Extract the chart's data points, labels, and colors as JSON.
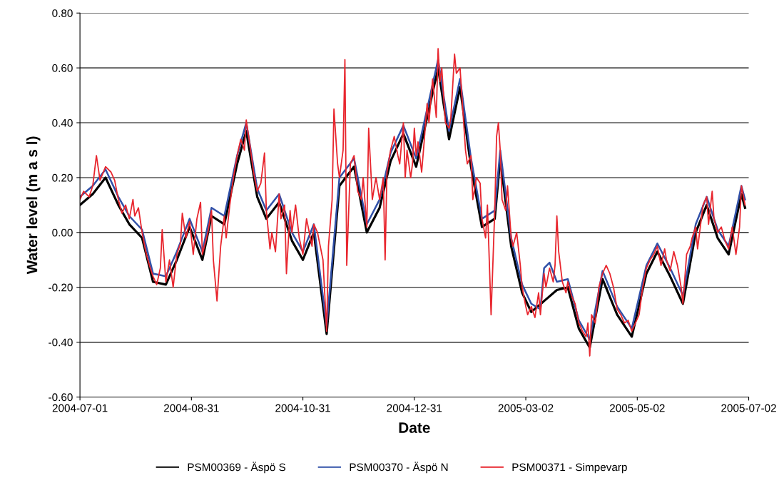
{
  "chart_data": {
    "type": "line",
    "xlabel": "Date",
    "ylabel": "Water level (m a s l)",
    "xlim": [
      "2004-07-01",
      "2005-07-02"
    ],
    "xticks": [
      "2004-07-01",
      "2004-08-31",
      "2004-10-31",
      "2004-12-31",
      "2005-03-02",
      "2005-05-02",
      "2005-07-02"
    ],
    "ylim": [
      -0.6,
      0.8
    ],
    "yticks": [
      {
        "value": -0.6,
        "label": "-0.60"
      },
      {
        "value": -0.4,
        "label": "-0.40"
      },
      {
        "value": -0.2,
        "label": "-0.20"
      },
      {
        "value": 0,
        "label": "0.00"
      },
      {
        "value": 0.2,
        "label": "0.20"
      },
      {
        "value": 0.4,
        "label": "0.40"
      },
      {
        "value": 0.6,
        "label": "0.60"
      },
      {
        "value": 0.8,
        "label": "0.80"
      }
    ],
    "grid": "y",
    "legend": "bottom",
    "marker": "none",
    "line_style": "solid",
    "series": [
      {
        "name": "PSM00369 - Äspö S",
        "color": "#000000",
        "x": [
          "2004-07-01",
          "2004-07-08",
          "2004-07-15",
          "2004-07-22",
          "2004-07-28",
          "2004-08-04",
          "2004-08-10",
          "2004-08-17",
          "2004-08-23",
          "2004-08-30",
          "2004-09-06",
          "2004-09-11",
          "2004-09-18",
          "2004-09-25",
          "2004-09-30",
          "2004-10-06",
          "2004-10-11",
          "2004-10-18",
          "2004-10-25",
          "2004-10-31",
          "2004-11-06",
          "2004-11-13",
          "2004-11-20",
          "2004-11-28",
          "2004-12-05",
          "2004-12-12",
          "2004-12-18",
          "2004-12-25",
          "2005-01-01",
          "2005-01-07",
          "2005-01-13",
          "2005-01-19",
          "2005-01-25",
          "2005-01-31",
          "2005-02-06",
          "2005-02-13",
          "2005-02-16",
          "2005-02-22",
          "2005-02-28",
          "2005-03-05",
          "2005-03-19",
          "2005-03-25",
          "2005-03-31",
          "2005-04-06",
          "2005-04-13",
          "2005-04-21",
          "2005-04-29",
          "2005-05-07",
          "2005-05-13",
          "2005-05-20",
          "2005-05-27",
          "2005-06-03",
          "2005-06-09",
          "2005-06-15",
          "2005-06-21",
          "2005-06-28",
          "2005-06-30"
        ],
        "values": [
          0.1,
          0.14,
          0.2,
          0.1,
          0.03,
          -0.02,
          -0.18,
          -0.19,
          -0.1,
          0.02,
          -0.1,
          0.06,
          0.03,
          0.25,
          0.37,
          0.13,
          0.05,
          0.11,
          -0.03,
          -0.1,
          0.0,
          -0.37,
          0.17,
          0.24,
          0.0,
          0.09,
          0.26,
          0.36,
          0.24,
          0.42,
          0.6,
          0.34,
          0.53,
          0.24,
          0.02,
          0.05,
          0.27,
          -0.05,
          -0.22,
          -0.29,
          -0.21,
          -0.2,
          -0.35,
          -0.42,
          -0.17,
          -0.3,
          -0.38,
          -0.15,
          -0.07,
          -0.16,
          -0.26,
          0.0,
          0.1,
          -0.02,
          -0.08,
          0.14,
          0.09
        ]
      },
      {
        "name": "PSM00370 - Äspö N",
        "color": "#3050a8",
        "x": [
          "2004-07-01",
          "2004-07-08",
          "2004-07-15",
          "2004-07-22",
          "2004-07-28",
          "2004-08-04",
          "2004-08-10",
          "2004-08-17",
          "2004-08-23",
          "2004-08-30",
          "2004-09-06",
          "2004-09-11",
          "2004-09-18",
          "2004-09-25",
          "2004-09-30",
          "2004-10-06",
          "2004-10-11",
          "2004-10-18",
          "2004-10-25",
          "2004-10-31",
          "2004-11-06",
          "2004-11-13",
          "2004-11-20",
          "2004-11-28",
          "2004-12-05",
          "2004-12-12",
          "2004-12-18",
          "2004-12-25",
          "2005-01-01",
          "2005-01-07",
          "2005-01-13",
          "2005-01-19",
          "2005-01-25",
          "2005-01-31",
          "2005-02-06",
          "2005-02-13",
          "2005-02-16",
          "2005-02-22",
          "2005-02-28",
          "2005-03-05",
          "2005-03-10",
          "2005-03-12",
          "2005-03-15",
          "2005-03-19",
          "2005-03-25",
          "2005-03-31",
          "2005-04-06",
          "2005-04-13",
          "2005-04-21",
          "2005-04-29",
          "2005-05-07",
          "2005-05-13",
          "2005-05-20",
          "2005-05-27",
          "2005-06-03",
          "2005-06-09",
          "2005-06-15",
          "2005-06-21",
          "2005-06-28",
          "2005-06-30"
        ],
        "values": [
          0.13,
          0.17,
          0.23,
          0.13,
          0.06,
          0.01,
          -0.15,
          -0.16,
          -0.07,
          0.05,
          -0.07,
          0.09,
          0.06,
          0.28,
          0.4,
          0.16,
          0.08,
          0.14,
          0.0,
          -0.07,
          0.03,
          -0.34,
          0.2,
          0.27,
          0.03,
          0.12,
          0.29,
          0.39,
          0.27,
          0.45,
          0.63,
          0.37,
          0.56,
          0.27,
          0.05,
          0.08,
          0.3,
          -0.02,
          -0.19,
          -0.26,
          -0.28,
          -0.13,
          -0.11,
          -0.18,
          -0.17,
          -0.32,
          -0.39,
          -0.14,
          -0.27,
          -0.35,
          -0.12,
          -0.04,
          -0.13,
          -0.23,
          0.03,
          0.13,
          0.01,
          -0.05,
          0.17,
          0.12
        ]
      },
      {
        "name": "PSM00371 - Simpevarp",
        "color": "#e8262e",
        "x": [
          "2004-07-01",
          "2004-07-03",
          "2004-07-06",
          "2004-07-08",
          "2004-07-10",
          "2004-07-12",
          "2004-07-15",
          "2004-07-18",
          "2004-07-20",
          "2004-07-22",
          "2004-07-24",
          "2004-07-26",
          "2004-07-28",
          "2004-07-30",
          "2004-07-31",
          "2004-08-02",
          "2004-08-04",
          "2004-08-06",
          "2004-08-08",
          "2004-08-10",
          "2004-08-12",
          "2004-08-14",
          "2004-08-15",
          "2004-08-17",
          "2004-08-19",
          "2004-08-21",
          "2004-08-23",
          "2004-08-25",
          "2004-08-26",
          "2004-08-28",
          "2004-08-30",
          "2004-09-01",
          "2004-09-03",
          "2004-09-05",
          "2004-09-06",
          "2004-09-09",
          "2004-09-11",
          "2004-09-12",
          "2004-09-14",
          "2004-09-16",
          "2004-09-18",
          "2004-09-19",
          "2004-09-21",
          "2004-09-23",
          "2004-09-25",
          "2004-09-27",
          "2004-09-29",
          "2004-09-30",
          "2004-10-02",
          "2004-10-04",
          "2004-10-06",
          "2004-10-08",
          "2004-10-10",
          "2004-10-11",
          "2004-10-13",
          "2004-10-14",
          "2004-10-16",
          "2004-10-18",
          "2004-10-19",
          "2004-10-21",
          "2004-10-22",
          "2004-10-24",
          "2004-10-25",
          "2004-10-27",
          "2004-10-29",
          "2004-10-31",
          "2004-11-02",
          "2004-11-05",
          "2004-11-06",
          "2004-11-08",
          "2004-11-11",
          "2004-11-13",
          "2004-11-14",
          "2004-11-16",
          "2004-11-17",
          "2004-11-19",
          "2004-11-20",
          "2004-11-22",
          "2004-11-23",
          "2004-11-24",
          "2004-11-26",
          "2004-11-28",
          "2004-11-30",
          "2004-12-02",
          "2004-12-03",
          "2004-12-05",
          "2004-12-06",
          "2004-12-08",
          "2004-12-10",
          "2004-12-12",
          "2004-12-14",
          "2004-12-15",
          "2004-12-16",
          "2004-12-18",
          "2004-12-20",
          "2004-12-22",
          "2004-12-23",
          "2004-12-25",
          "2004-12-26",
          "2004-12-27",
          "2004-12-29",
          "2004-12-30",
          "2004-12-31",
          "2005-01-01",
          "2005-01-02",
          "2005-01-04",
          "2005-01-05",
          "2005-01-07",
          "2005-01-08",
          "2005-01-09",
          "2005-01-10",
          "2005-01-12",
          "2005-01-13",
          "2005-01-14",
          "2005-01-15",
          "2005-01-17",
          "2005-01-19",
          "2005-01-20",
          "2005-01-22",
          "2005-01-23",
          "2005-01-25",
          "2005-01-26",
          "2005-01-28",
          "2005-01-29",
          "2005-01-31",
          "2005-02-01",
          "2005-02-03",
          "2005-02-05",
          "2005-02-06",
          "2005-02-08",
          "2005-02-09",
          "2005-02-11",
          "2005-02-13",
          "2005-02-14",
          "2005-02-15",
          "2005-02-16",
          "2005-02-17",
          "2005-02-19",
          "2005-02-20",
          "2005-02-22",
          "2005-02-23",
          "2005-02-25",
          "2005-02-27",
          "2005-02-28",
          "2005-03-02",
          "2005-03-03",
          "2005-03-05",
          "2005-03-07",
          "2005-03-09",
          "2005-03-10",
          "2005-03-12",
          "2005-03-13",
          "2005-03-15",
          "2005-03-17",
          "2005-03-18",
          "2005-03-19",
          "2005-03-20",
          "2005-03-22",
          "2005-03-24",
          "2005-03-25",
          "2005-03-27",
          "2005-03-29",
          "2005-03-31",
          "2005-04-02",
          "2005-04-04",
          "2005-04-05",
          "2005-04-06",
          "2005-04-07",
          "2005-04-09",
          "2005-04-11",
          "2005-04-13",
          "2005-04-15",
          "2005-04-17",
          "2005-04-19",
          "2005-04-21",
          "2005-04-23",
          "2005-04-25",
          "2005-04-27",
          "2005-04-29",
          "2005-05-01",
          "2005-05-03",
          "2005-05-05",
          "2005-05-07",
          "2005-05-09",
          "2005-05-11",
          "2005-05-13",
          "2005-05-15",
          "2005-05-17",
          "2005-05-18",
          "2005-05-20",
          "2005-05-22",
          "2005-05-24",
          "2005-05-26",
          "2005-05-27",
          "2005-05-29",
          "2005-05-31",
          "2005-06-01",
          "2005-06-03",
          "2005-06-04",
          "2005-06-07",
          "2005-06-09",
          "2005-06-10",
          "2005-06-12",
          "2005-06-13",
          "2005-06-15",
          "2005-06-17",
          "2005-06-19",
          "2005-06-21",
          "2005-06-23",
          "2005-06-25",
          "2005-06-27",
          "2005-06-28",
          "2005-06-30"
        ],
        "values": [
          0.12,
          0.15,
          0.13,
          0.17,
          0.28,
          0.19,
          0.24,
          0.22,
          0.19,
          0.12,
          0.07,
          0.1,
          0.05,
          0.12,
          0.06,
          0.09,
          0.0,
          -0.07,
          -0.12,
          -0.16,
          -0.19,
          -0.13,
          0.01,
          -0.18,
          -0.1,
          -0.2,
          -0.08,
          -0.04,
          0.07,
          -0.02,
          0.04,
          -0.08,
          0.05,
          0.11,
          -0.08,
          0.0,
          0.08,
          -0.1,
          -0.25,
          -0.05,
          0.06,
          -0.02,
          0.1,
          0.2,
          0.28,
          0.34,
          0.3,
          0.41,
          0.32,
          0.22,
          0.15,
          0.18,
          0.29,
          0.08,
          -0.06,
          0.0,
          -0.07,
          0.14,
          0.05,
          0.1,
          -0.15,
          0.08,
          0.0,
          0.1,
          -0.02,
          -0.08,
          0.05,
          -0.05,
          0.03,
          0.0,
          -0.1,
          -0.36,
          -0.05,
          0.12,
          0.45,
          0.25,
          0.2,
          0.3,
          0.63,
          -0.12,
          0.25,
          0.28,
          0.15,
          0.12,
          0.2,
          0.02,
          0.38,
          0.12,
          0.2,
          0.12,
          0.2,
          -0.1,
          0.22,
          0.3,
          0.35,
          0.28,
          0.25,
          0.4,
          0.2,
          0.3,
          0.2,
          0.25,
          0.38,
          0.28,
          0.33,
          0.22,
          0.3,
          0.47,
          0.4,
          0.48,
          0.56,
          0.42,
          0.67,
          0.55,
          0.6,
          0.4,
          0.38,
          0.42,
          0.65,
          0.58,
          0.6,
          0.5,
          0.3,
          0.25,
          0.28,
          0.12,
          0.2,
          0.18,
          0.05,
          -0.02,
          0.1,
          -0.3,
          0.08,
          0.35,
          0.4,
          0.3,
          0.12,
          0.08,
          0.17,
          -0.02,
          -0.05,
          0.0,
          -0.12,
          -0.2,
          -0.27,
          -0.3,
          -0.27,
          -0.31,
          -0.22,
          -0.3,
          -0.15,
          -0.2,
          -0.13,
          -0.18,
          -0.12,
          0.06,
          -0.07,
          -0.18,
          -0.22,
          -0.18,
          -0.23,
          -0.26,
          -0.33,
          -0.36,
          -0.38,
          -0.33,
          -0.45,
          -0.3,
          -0.33,
          -0.2,
          -0.15,
          -0.12,
          -0.15,
          -0.2,
          -0.28,
          -0.3,
          -0.33,
          -0.32,
          -0.36,
          -0.33,
          -0.3,
          -0.2,
          -0.13,
          -0.1,
          -0.08,
          -0.05,
          -0.12,
          -0.06,
          -0.1,
          -0.14,
          -0.07,
          -0.12,
          -0.2,
          -0.26,
          -0.08,
          -0.05,
          -0.02,
          0.02,
          -0.06,
          0.1,
          0.13,
          0.03,
          0.15,
          0.05,
          0.0,
          0.02,
          -0.03,
          -0.06,
          0.02,
          -0.08,
          0.02,
          0.17,
          0.1
        ]
      }
    ]
  }
}
